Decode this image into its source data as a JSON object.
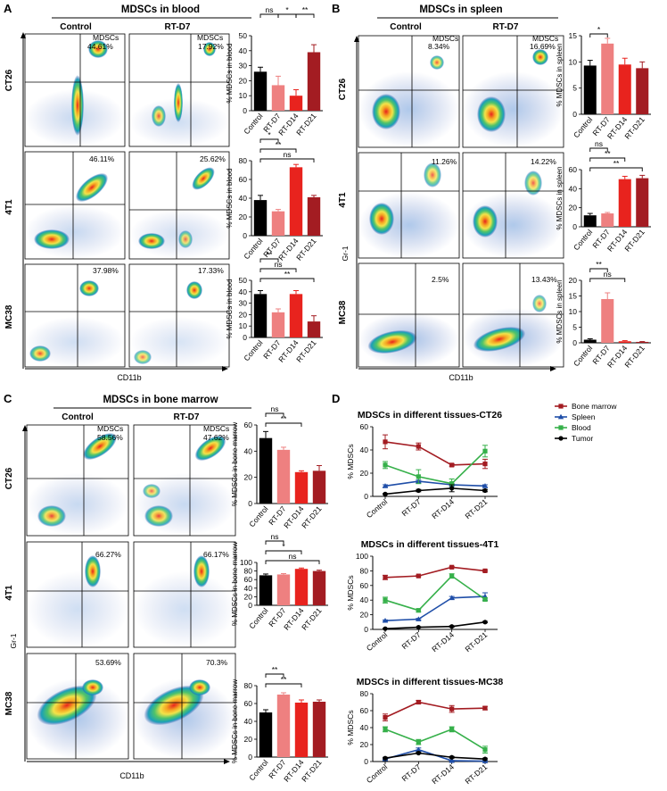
{
  "colors": {
    "control": "#000000",
    "d7": "#ee8080",
    "d14": "#e8231e",
    "d21": "#a31c22",
    "bone_marrow": "#a31c22",
    "spleen": "#1f4ea8",
    "blood": "#36b04a",
    "tumor": "#000000"
  },
  "panels": {
    "A": {
      "letter": "A",
      "title": "MDSCs in blood",
      "cond_left": "Control",
      "cond_right": "RT-D7",
      "gate_label": "MDSCs",
      "rows": [
        "CT26",
        "4T1",
        "MC38"
      ],
      "gates": [
        [
          "44.61%",
          "17.92%"
        ],
        [
          "46.11%",
          "25.62%"
        ],
        [
          "37.98%",
          "17.33%"
        ]
      ]
    },
    "B": {
      "letter": "B",
      "title": "MDSCs in spleen",
      "cond_left": "Control",
      "cond_right": "RT-D7",
      "gate_label": "MDSCs",
      "rows": [
        "CT26",
        "4T1",
        "MC38"
      ],
      "gates": [
        [
          "8.34%",
          "16.69%"
        ],
        [
          "11.26%",
          "14.22%"
        ],
        [
          "2.5%",
          "13.43%"
        ]
      ]
    },
    "C": {
      "letter": "C",
      "title": "MDSCs in bone marrow",
      "cond_left": "Control",
      "cond_right": "RT-D7",
      "gate_label": "MDSCs",
      "rows": [
        "CT26",
        "4T1",
        "MC38"
      ],
      "gates": [
        [
          "58.56%",
          "47.62%"
        ],
        [
          "66.27%",
          "66.17%"
        ],
        [
          "53.69%",
          "70.3%"
        ]
      ]
    },
    "D": {
      "letter": "D"
    }
  },
  "axis_labels": {
    "x": "CD11b",
    "y": "Gr-1"
  },
  "chart_data": [
    {
      "id": "A-CT26",
      "type": "bar",
      "categories": [
        "Control",
        "RT-D7",
        "RT-D14",
        "RT-D21"
      ],
      "values": [
        26,
        17,
        10,
        39
      ],
      "errors": [
        3,
        6,
        4,
        5
      ],
      "ylim": [
        0,
        50
      ],
      "ticks": [
        0,
        10,
        20,
        30,
        40,
        50
      ],
      "ylabel": "% MDSCs in blood",
      "significance": [
        {
          "pair": [
            0,
            1
          ],
          "label": "ns",
          "level": 0
        },
        {
          "pair": [
            1,
            2
          ],
          "label": "*",
          "level": 0
        },
        {
          "pair": [
            2,
            3
          ],
          "label": "**",
          "level": 0
        }
      ]
    },
    {
      "id": "A-4T1",
      "type": "bar",
      "categories": [
        "Control",
        "RT-D7",
        "RT-D14",
        "RT-D21"
      ],
      "values": [
        38,
        26,
        73,
        41
      ],
      "errors": [
        5,
        2,
        3,
        2
      ],
      "ylim": [
        0,
        80
      ],
      "ticks": [
        0,
        20,
        40,
        60,
        80
      ],
      "ylabel": "% MDSCs in blood",
      "significance": [
        {
          "pair": [
            0,
            1
          ],
          "label": "*",
          "level": 0
        },
        {
          "pair": [
            0,
            2
          ],
          "label": "**",
          "level": 1
        },
        {
          "pair": [
            0,
            3
          ],
          "label": "ns",
          "level": 2
        }
      ]
    },
    {
      "id": "A-MC38",
      "type": "bar",
      "categories": [
        "Control",
        "RT-D7",
        "RT-D14",
        "RT-D21"
      ],
      "values": [
        38,
        22,
        38,
        14
      ],
      "errors": [
        3,
        3,
        3,
        5
      ],
      "ylim": [
        0,
        50
      ],
      "ticks": [
        0,
        10,
        20,
        30,
        40,
        50
      ],
      "ylabel": "% MDSCs in blood",
      "significance": [
        {
          "pair": [
            0,
            1
          ],
          "label": "**",
          "level": 0
        },
        {
          "pair": [
            0,
            2
          ],
          "label": "ns",
          "level": 1
        },
        {
          "pair": [
            0,
            3
          ],
          "label": "**",
          "level": 2
        }
      ]
    },
    {
      "id": "B-CT26",
      "type": "bar",
      "categories": [
        "Control",
        "RT-D7",
        "RT-D14",
        "RT-D21"
      ],
      "values": [
        9.3,
        13.5,
        9.5,
        8.8
      ],
      "errors": [
        1,
        1,
        1.2,
        1.2
      ],
      "ylim": [
        0,
        15
      ],
      "ticks": [
        0,
        5,
        10,
        15
      ],
      "ylabel": "% MDSCs in spleen",
      "significance": [
        {
          "pair": [
            0,
            1
          ],
          "label": "*",
          "level": 0
        }
      ]
    },
    {
      "id": "B-4T1",
      "type": "bar",
      "categories": [
        "Control",
        "RT-D7",
        "RT-D14",
        "RT-D21"
      ],
      "values": [
        12,
        14,
        50,
        51
      ],
      "errors": [
        2,
        1,
        3,
        3
      ],
      "ylim": [
        0,
        60
      ],
      "ticks": [
        0,
        20,
        40,
        60
      ],
      "ylabel": "% MDSCs in spleen",
      "significance": [
        {
          "pair": [
            0,
            1
          ],
          "label": "ns",
          "level": 0
        },
        {
          "pair": [
            0,
            2
          ],
          "label": "**",
          "level": 1
        },
        {
          "pair": [
            0,
            3
          ],
          "label": "**",
          "level": 2
        }
      ]
    },
    {
      "id": "B-MC38",
      "type": "bar",
      "categories": [
        "Control",
        "RT-D7",
        "RT-D14",
        "RT-D21"
      ],
      "values": [
        1,
        14,
        0.5,
        0.3
      ],
      "errors": [
        0.3,
        2,
        0.2,
        0.1
      ],
      "ylim": [
        0,
        20
      ],
      "ticks": [
        0,
        5,
        10,
        15,
        20
      ],
      "ylabel": "% MDSCs in spleen",
      "significance": [
        {
          "pair": [
            0,
            1
          ],
          "label": "**",
          "level": 0
        },
        {
          "pair": [
            0,
            2
          ],
          "label": "ns",
          "level": 1
        }
      ]
    },
    {
      "id": "C-CT26",
      "type": "bar",
      "categories": [
        "Control",
        "RT-D7",
        "RT-D14",
        "RT-D21"
      ],
      "values": [
        50,
        41,
        24,
        25
      ],
      "errors": [
        5,
        2,
        1,
        4
      ],
      "ylim": [
        0,
        60
      ],
      "ticks": [
        0,
        20,
        40,
        60
      ],
      "ylabel": "% MDSCs in bone marrow",
      "significance": [
        {
          "pair": [
            0,
            1
          ],
          "label": "ns",
          "level": 0
        },
        {
          "pair": [
            0,
            2
          ],
          "label": "**",
          "level": 1
        }
      ]
    },
    {
      "id": "C-4T1",
      "type": "bar",
      "categories": [
        "Control",
        "RT-D7",
        "RT-D14",
        "RT-D21"
      ],
      "values": [
        70,
        72,
        85,
        80
      ],
      "errors": [
        3,
        2,
        2,
        2
      ],
      "ylim": [
        0,
        100
      ],
      "ticks": [
        0,
        20,
        40,
        60,
        80,
        100
      ],
      "ylabel": "% MDSCs in bone marrow",
      "significance": [
        {
          "pair": [
            0,
            1
          ],
          "label": "ns",
          "level": 0
        },
        {
          "pair": [
            0,
            2
          ],
          "label": "*",
          "level": 1
        },
        {
          "pair": [
            0,
            3
          ],
          "label": "ns",
          "level": 2
        }
      ]
    },
    {
      "id": "C-MC38",
      "type": "bar",
      "categories": [
        "Control",
        "RT-D7",
        "RT-D14",
        "RT-D21"
      ],
      "values": [
        50,
        70,
        61,
        62
      ],
      "errors": [
        3,
        2,
        3,
        2
      ],
      "ylim": [
        0,
        80
      ],
      "ticks": [
        0,
        20,
        40,
        60,
        80
      ],
      "ylabel": "% MDSCs in bone marrow",
      "significance": [
        {
          "pair": [
            0,
            1
          ],
          "label": "**",
          "level": 0
        },
        {
          "pair": [
            0,
            2
          ],
          "label": "**",
          "level": 1
        }
      ]
    },
    {
      "id": "D-CT26",
      "type": "line",
      "title": "MDSCs in different tissues-CT26",
      "x": [
        "Control",
        "RT-D7",
        "RT-D14",
        "RT-D21"
      ],
      "ylabel": "% MDSCs",
      "ylim": [
        0,
        60
      ],
      "ticks": [
        0,
        20,
        40,
        60
      ],
      "legend": "top-right",
      "series": [
        {
          "name": "Bone marrow",
          "color": "#a31c22",
          "values": [
            47,
            43,
            27,
            28
          ],
          "errors": [
            6,
            3,
            1,
            4
          ]
        },
        {
          "name": "Spleen",
          "color": "#1f4ea8",
          "values": [
            9,
            13,
            10,
            9
          ],
          "errors": [
            1,
            1,
            1,
            1
          ]
        },
        {
          "name": "Blood",
          "color": "#36b04a",
          "values": [
            27,
            17,
            11,
            39
          ],
          "errors": [
            3,
            6,
            4,
            5
          ]
        },
        {
          "name": "Tumor",
          "color": "#000000",
          "values": [
            2,
            5,
            7,
            5
          ],
          "errors": [
            0.5,
            1,
            3,
            1
          ]
        }
      ]
    },
    {
      "id": "D-4T1",
      "type": "line",
      "title": "MDSCs in different tissues-4T1",
      "x": [
        "Control",
        "RT-D7",
        "RT-D14",
        "RT-D21"
      ],
      "ylabel": "% MDSCs",
      "ylim": [
        0,
        100
      ],
      "ticks": [
        0,
        20,
        40,
        60,
        80,
        100
      ],
      "series": [
        {
          "name": "Bone marrow",
          "color": "#a31c22",
          "values": [
            71,
            73,
            85,
            80
          ],
          "errors": [
            3,
            1,
            1,
            1
          ]
        },
        {
          "name": "Spleen",
          "color": "#1f4ea8",
          "values": [
            12,
            14,
            43,
            45
          ],
          "errors": [
            1,
            1,
            2,
            5
          ]
        },
        {
          "name": "Blood",
          "color": "#36b04a",
          "values": [
            40,
            26,
            73,
            41
          ],
          "errors": [
            4,
            2,
            3,
            2
          ]
        },
        {
          "name": "Tumor",
          "color": "#000000",
          "values": [
            1,
            3,
            4,
            10
          ],
          "errors": [
            0.5,
            0.5,
            1,
            1
          ]
        }
      ]
    },
    {
      "id": "D-MC38",
      "type": "line",
      "title": "MDSCs in different tissues-MC38",
      "x": [
        "Control",
        "RT-D7",
        "RT-D14",
        "RT-D21"
      ],
      "ylabel": "% MDSCs",
      "ylim": [
        0,
        80
      ],
      "ticks": [
        0,
        20,
        40,
        60,
        80
      ],
      "series": [
        {
          "name": "Bone marrow",
          "color": "#a31c22",
          "values": [
            52,
            70,
            62,
            63
          ],
          "errors": [
            4,
            2,
            4,
            2
          ]
        },
        {
          "name": "Spleen",
          "color": "#1f4ea8",
          "values": [
            3,
            14,
            1,
            0.5
          ],
          "errors": [
            1,
            2,
            0.3,
            0.2
          ]
        },
        {
          "name": "Blood",
          "color": "#36b04a",
          "values": [
            38,
            23,
            38,
            14
          ],
          "errors": [
            3,
            3,
            3,
            4
          ]
        },
        {
          "name": "Tumor",
          "color": "#000000",
          "values": [
            4,
            10,
            5,
            3
          ],
          "errors": [
            1,
            1,
            1,
            1
          ]
        }
      ]
    }
  ]
}
